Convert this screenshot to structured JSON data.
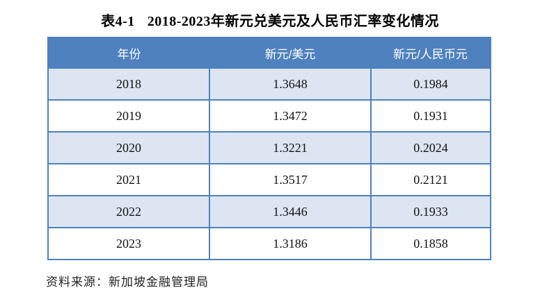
{
  "page": {
    "title": {
      "prefix": "表4-1",
      "text": "2018-2023年新元兑美元及人民币汇率变化情况"
    },
    "source_note": "资料来源：新加坡金融管理局"
  },
  "table": {
    "columns": [
      "年份",
      "新元/美元",
      "新元/人民币元"
    ],
    "rows": [
      [
        "2018",
        "1.3648",
        "0.1984"
      ],
      [
        "2019",
        "1.3472",
        "0.1931"
      ],
      [
        "2020",
        "1.3221",
        "0.2024"
      ],
      [
        "2021",
        "1.3517",
        "0.2121"
      ],
      [
        "2022",
        "1.3446",
        "0.1933"
      ],
      [
        "2023",
        "1.3186",
        "0.1858"
      ]
    ]
  },
  "colors": {
    "header_bg": "#4E81BD",
    "border": "#4E81BD",
    "row_alt_bg": "#DCE5F1",
    "row_bg": "#FFFFFF",
    "header_text": "#FFFFFF"
  },
  "chart_data": {
    "type": "table",
    "title": "表4-1 2018-2023年新元兑美元及人民币汇率变化情况",
    "categories": [
      "2018",
      "2019",
      "2020",
      "2021",
      "2022",
      "2023"
    ],
    "series": [
      {
        "name": "新元/美元",
        "values": [
          1.3648,
          1.3472,
          1.3221,
          1.3517,
          1.3446,
          1.3186
        ]
      },
      {
        "name": "新元/人民币元",
        "values": [
          0.1984,
          0.1931,
          0.2024,
          0.2121,
          0.1933,
          0.1858
        ]
      }
    ],
    "source": "资料来源：新加坡金融管理局"
  }
}
